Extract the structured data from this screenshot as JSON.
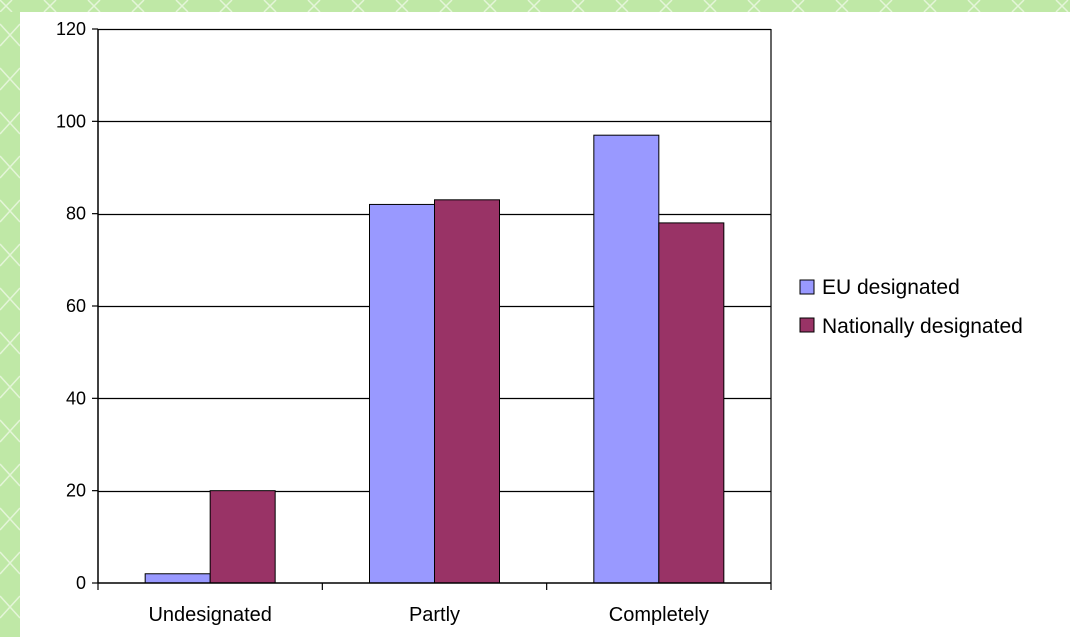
{
  "theme": {
    "background_pattern_color": "#bfe8a6",
    "plot_background": "#ffffff"
  },
  "chart_data": {
    "type": "bar",
    "categories": [
      "Undesignated",
      "Partly",
      "Completely"
    ],
    "series": [
      {
        "name": "EU designated",
        "color": "#9999ff",
        "values": [
          2,
          82,
          97
        ]
      },
      {
        "name": "Nationally designated",
        "color": "#993366",
        "values": [
          20,
          83,
          78
        ]
      }
    ],
    "yticks": [
      "0",
      "20",
      "40",
      "60",
      "80",
      "100",
      "120"
    ],
    "ylim": [
      0,
      120
    ],
    "grid": true,
    "legend_position": "right"
  }
}
